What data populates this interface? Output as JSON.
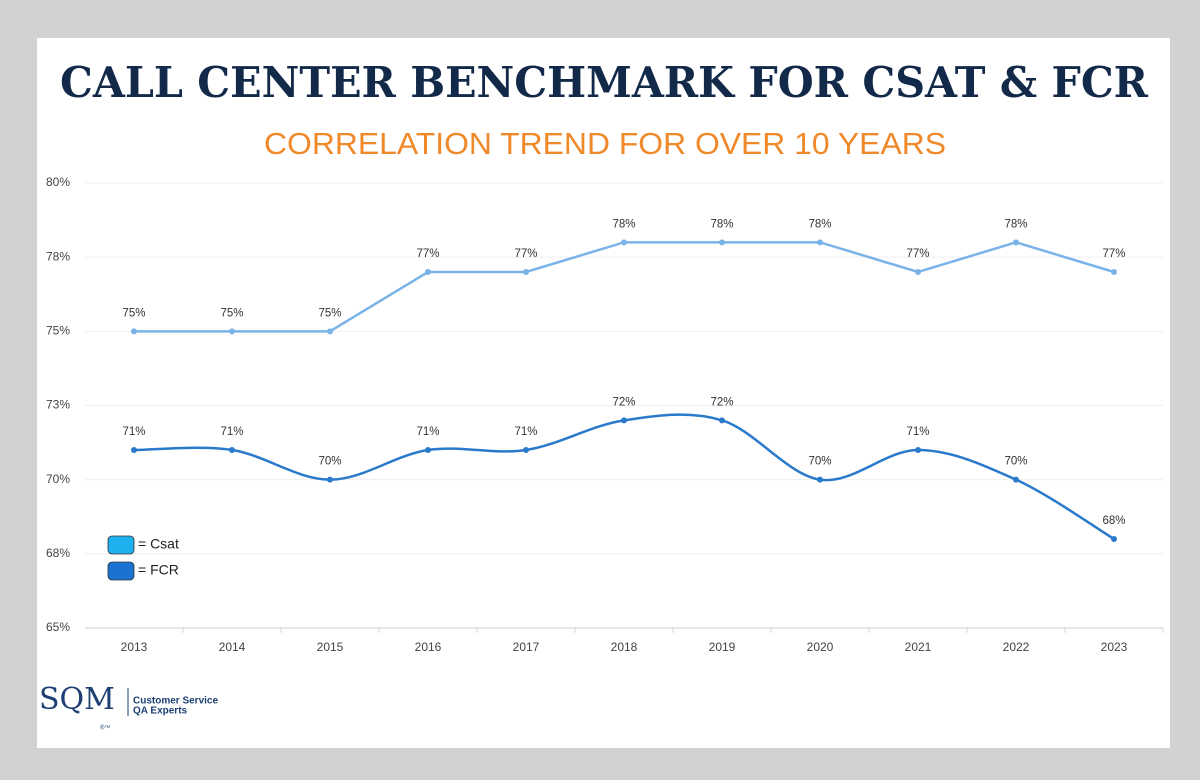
{
  "chart_data": {
    "type": "line",
    "title": "CALL CENTER BENCHMARK FOR CSAT & FCR",
    "subtitle": "CORRELATION TREND FOR OVER 10 YEARS",
    "categories": [
      "2013",
      "2014",
      "2015",
      "2016",
      "2017",
      "2018",
      "2019",
      "2020",
      "2021",
      "2022",
      "2023"
    ],
    "series": [
      {
        "name": "= Csat",
        "color": "#7ab3e8",
        "legend_color": "#1fb0ef",
        "smooth": false,
        "values": [
          75,
          75,
          75,
          77,
          77,
          78,
          78,
          78,
          77,
          78,
          77
        ],
        "value_labels": [
          "75%",
          "75%",
          "75%",
          "77%",
          "77%",
          "78%",
          "78%",
          "78%",
          "77%",
          "78%",
          "77%"
        ]
      },
      {
        "name": "= FCR",
        "color": "#2a7acb",
        "legend_color": "#1a73d0",
        "smooth": true,
        "values": [
          71,
          71,
          70,
          71,
          71,
          72,
          72,
          70,
          71,
          70,
          68
        ],
        "value_labels": [
          "71%",
          "71%",
          "70%",
          "71%",
          "71%",
          "72%",
          "72%",
          "70%",
          "71%",
          "70%",
          "68%"
        ]
      }
    ],
    "ylim": [
      65,
      80
    ],
    "yticks": [
      {
        "value": 65,
        "label": "65%"
      },
      {
        "value": 67.5,
        "label": "68%"
      },
      {
        "value": 70,
        "label": "70%"
      },
      {
        "value": 72.5,
        "label": "73%"
      },
      {
        "value": 75,
        "label": "75%"
      },
      {
        "value": 77.5,
        "label": "78%"
      },
      {
        "value": 80,
        "label": "80%"
      }
    ],
    "grid": true,
    "legend": "lower-left"
  },
  "logo": {
    "mark": "SQM",
    "symbols": "®™",
    "line1": "Customer Service",
    "line2": "QA Experts"
  }
}
